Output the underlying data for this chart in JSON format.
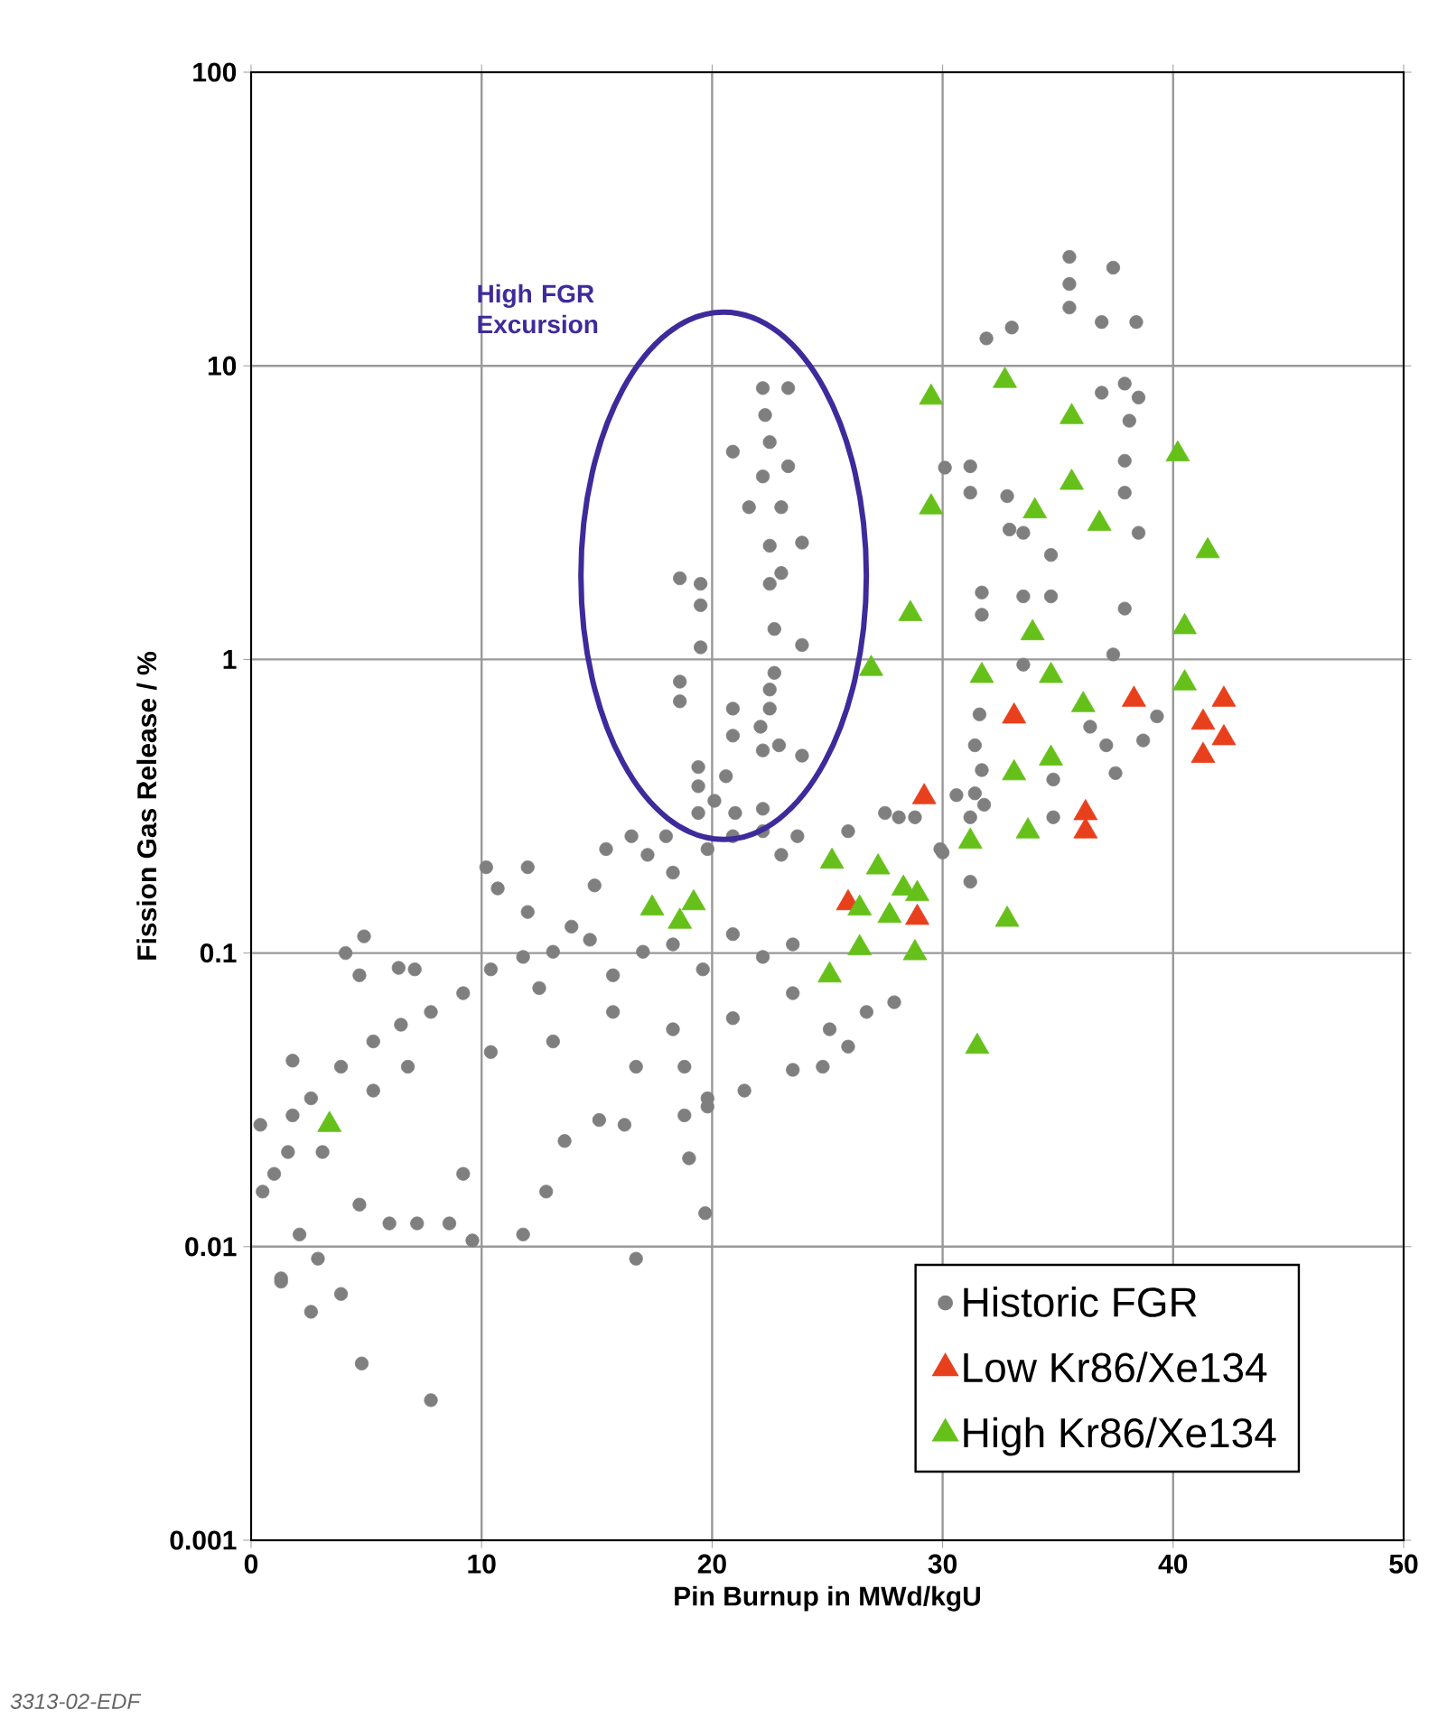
{
  "chart_data": {
    "type": "scatter",
    "xlabel": "Pin Burnup in MWd/kgU",
    "ylabel": "Fission Gas Release / %",
    "xlim": [
      0,
      50
    ],
    "ylim": [
      0.001,
      100
    ],
    "xticks": [
      0,
      10,
      20,
      30,
      40,
      50
    ],
    "yticks": [
      0.001,
      0.01,
      0.1,
      1,
      10,
      100
    ],
    "log": "y",
    "grid": true,
    "legend": "bottom right",
    "annotations": [
      "High FGR Excursion",
      "3313-02-EDF"
    ],
    "series": [
      {
        "name": "Historic FGR",
        "color": "#7f7f7f",
        "marker": "circle",
        "x": [
          1.3,
          4.8,
          7.8,
          16.7,
          19.7,
          19.0,
          18.6,
          19.5,
          19.5,
          19.5,
          18.6,
          18.6,
          20.9,
          22.2,
          23.3,
          22.3,
          22.5,
          23.3,
          22.2,
          21.6,
          23.0,
          22.5,
          23.9,
          23.0,
          22.5,
          22.7,
          23.9,
          22.7,
          22.5,
          22.5,
          20.9,
          20.9,
          22.1,
          22.2,
          22.9,
          23.9,
          19.4,
          19.4,
          20.6,
          19.4,
          21.0,
          22.2,
          20.1,
          35.5,
          35.5,
          35.5,
          37.4,
          36.9,
          38.4,
          31.9,
          33.0,
          37.9,
          38.5,
          38.1,
          36.9,
          31.2,
          30.1,
          31.2,
          32.8,
          33.5,
          32.9,
          37.9,
          37.9,
          38.5,
          34.7,
          31.7,
          33.5,
          34.7,
          31.7,
          37.9,
          37.4,
          33.5,
          31.6,
          39.3,
          38.7,
          37.5,
          36.4,
          37.1,
          34.8,
          31.4,
          31.4,
          31.2,
          34.8,
          31.7,
          31.2,
          30.0,
          28.8,
          28.1,
          0.4,
          0.5,
          1.3,
          2.6,
          3.9,
          2.9,
          2.1,
          1.0,
          1.8,
          1.8,
          3.9,
          4.9,
          4.1,
          4.7,
          6.4,
          7.1,
          5.3,
          6.5,
          6.0,
          4.7,
          7.2,
          8.6,
          9.6,
          11.8,
          9.2,
          12.8,
          13.6,
          16.2,
          18.8,
          19.8,
          15.1,
          16.7,
          18.8,
          19.8,
          21.4,
          23.5,
          24.8,
          25.1,
          10.2,
          10.7,
          12.0,
          12.0,
          13.9,
          14.9,
          15.4,
          16.5,
          17.2,
          18.0,
          18.3,
          19.8,
          20.9,
          22.2,
          23.0,
          23.7,
          1.6,
          3.1,
          2.6,
          5.3,
          6.8,
          7.8,
          9.2,
          10.4,
          11.8,
          12.5,
          13.1,
          14.7,
          15.7,
          17.0,
          18.3,
          19.6,
          20.9,
          22.2,
          23.5,
          23.5,
          20.9,
          18.3,
          15.7,
          13.1,
          10.4,
          25.9,
          27.5,
          27.9,
          26.7,
          25.9,
          29.9,
          30.6,
          31.8
        ],
        "values": [
          0.0076,
          0.004,
          0.003,
          0.0091,
          0.013,
          0.02,
          1.89,
          1.81,
          1.53,
          1.1,
          0.84,
          0.72,
          5.1,
          8.4,
          8.4,
          6.8,
          5.5,
          4.55,
          4.2,
          3.3,
          3.3,
          2.44,
          2.5,
          1.97,
          1.81,
          1.27,
          1.12,
          0.9,
          0.79,
          0.68,
          0.68,
          0.55,
          0.59,
          0.49,
          0.51,
          0.47,
          0.43,
          0.37,
          0.4,
          0.3,
          0.3,
          0.31,
          0.33,
          23.5,
          19,
          15.8,
          21.6,
          14.1,
          14.1,
          12.4,
          13.5,
          8.7,
          7.8,
          6.5,
          8.1,
          4.55,
          4.5,
          3.7,
          3.6,
          2.7,
          2.77,
          4.75,
          3.7,
          2.7,
          2.27,
          1.69,
          1.64,
          1.64,
          1.42,
          1.49,
          1.04,
          0.96,
          0.65,
          0.64,
          0.53,
          0.41,
          0.59,
          0.51,
          0.39,
          0.51,
          0.35,
          0.29,
          0.29,
          0.42,
          0.175,
          0.22,
          0.29,
          0.29,
          0.026,
          0.0154,
          0.0078,
          0.006,
          0.0069,
          0.0091,
          0.011,
          0.0177,
          0.028,
          0.043,
          0.041,
          0.114,
          0.1,
          0.084,
          0.089,
          0.088,
          0.05,
          0.057,
          0.012,
          0.0139,
          0.012,
          0.012,
          0.0105,
          0.011,
          0.0177,
          0.0154,
          0.0229,
          0.026,
          0.028,
          0.03,
          0.027,
          0.041,
          0.041,
          0.032,
          0.034,
          0.04,
          0.041,
          0.055,
          0.196,
          0.166,
          0.196,
          0.138,
          0.123,
          0.17,
          0.226,
          0.25,
          0.216,
          0.25,
          0.188,
          0.226,
          0.25,
          0.26,
          0.216,
          0.25,
          0.021,
          0.021,
          0.032,
          0.034,
          0.041,
          0.063,
          0.073,
          0.088,
          0.097,
          0.076,
          0.101,
          0.111,
          0.084,
          0.101,
          0.107,
          0.088,
          0.116,
          0.097,
          0.107,
          0.073,
          0.06,
          0.055,
          0.063,
          0.05,
          0.046,
          0.26,
          0.3,
          0.068,
          0.063,
          0.048,
          0.226,
          0.345,
          0.32
        ]
      },
      {
        "name": "Low Kr86/Xe134",
        "color": "#e8401c",
        "marker": "triangle",
        "x": [
          29.2,
          33.1,
          38.3,
          42.2,
          41.3,
          42.2,
          41.3,
          36.2,
          36.2,
          25.9,
          28.9
        ],
        "values": [
          0.34,
          0.64,
          0.73,
          0.73,
          0.61,
          0.54,
          0.47,
          0.3,
          0.26,
          0.148,
          0.132
        ]
      },
      {
        "name": "High Kr86/Xe134",
        "color": "#66c01a",
        "marker": "triangle",
        "x": [
          3.4,
          17.4,
          18.6,
          19.2,
          25.2,
          25.1,
          26.4,
          26.4,
          27.2,
          27.7,
          28.3,
          28.9,
          28.8,
          26.9,
          28.6,
          29.5,
          29.5,
          31.2,
          31.7,
          32.7,
          32.8,
          31.5,
          33.1,
          33.7,
          33.9,
          34.0,
          34.7,
          34.7,
          35.6,
          35.6,
          36.1,
          36.8,
          40.2,
          41.5,
          40.5,
          40.5
        ],
        "values": [
          0.026,
          0.142,
          0.128,
          0.148,
          0.205,
          0.084,
          0.104,
          0.142,
          0.196,
          0.134,
          0.166,
          0.159,
          0.1,
          0.93,
          1.43,
          7.8,
          3.3,
          0.24,
          0.88,
          8.9,
          0.13,
          0.048,
          0.41,
          0.26,
          1.23,
          3.2,
          0.88,
          0.46,
          4.0,
          6.7,
          0.7,
          2.9,
          5.0,
          2.34,
          1.29,
          0.83
        ]
      }
    ]
  }
}
